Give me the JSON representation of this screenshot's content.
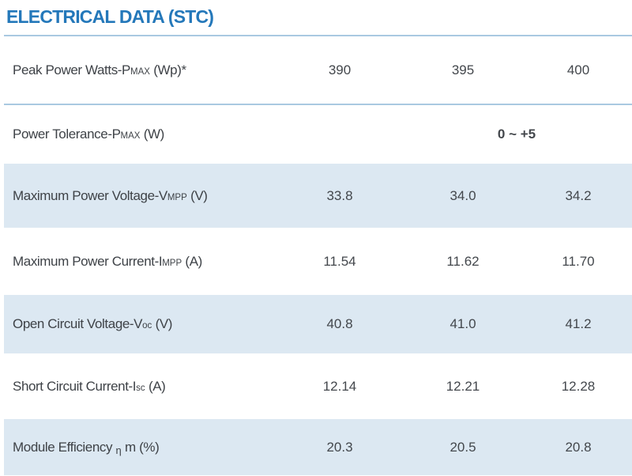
{
  "header": {
    "title": "ELECTRICAL DATA (STC)"
  },
  "table": {
    "variant_columns": [
      "390",
      "395",
      "400"
    ],
    "rows": [
      {
        "label": {
          "prefix": "Peak Power Watts-P",
          "sub": "MAX",
          "suffix": " (Wp)*"
        },
        "values": [
          "390",
          "395",
          "400"
        ]
      },
      {
        "label": {
          "prefix": "Power Tolerance-P",
          "sub": "MAX",
          "suffix": " (W)"
        },
        "span_value": "0 ~ +5"
      },
      {
        "label": {
          "prefix": "Maximum Power Voltage-V",
          "sub": "MPP",
          "suffix": " (V)"
        },
        "values": [
          "33.8",
          "34.0",
          "34.2"
        ]
      },
      {
        "label": {
          "prefix": "Maximum Power Current-I",
          "sub": "MPP",
          "suffix": " (A)"
        },
        "values": [
          "11.54",
          "11.62",
          "11.70"
        ]
      },
      {
        "label": {
          "prefix": "Open Circuit Voltage-V",
          "sub": "oc",
          "suffix": " (V)"
        },
        "values": [
          "40.8",
          "41.0",
          "41.2"
        ]
      },
      {
        "label": {
          "prefix": "Short Circuit Current-I",
          "sub": "sc",
          "suffix": " (A)"
        },
        "values": [
          "12.14",
          "12.21",
          "12.28"
        ]
      },
      {
        "label": {
          "prefix": "Module Efficiency ",
          "sub": "η",
          "suffix": " m (%)"
        },
        "values": [
          "20.3",
          "20.5",
          "20.8"
        ]
      }
    ]
  },
  "colors": {
    "title_blue": "#2478ba",
    "rule_blue": "#a9c9e1",
    "row_alt_background": "#dce8f2",
    "text": "#43474c",
    "page_background": "#ffffff"
  }
}
